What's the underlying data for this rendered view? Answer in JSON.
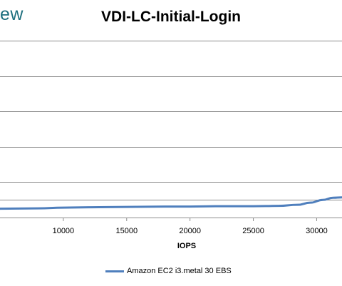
{
  "branding": {
    "text": "ew"
  },
  "chart_data": {
    "type": "line",
    "title": "VDI-LC-Initial-Login",
    "xlabel": "IOPS",
    "ylabel": "",
    "xlim": [
      5000,
      32000
    ],
    "ylim": [
      0,
      0.5
    ],
    "x_ticks": [
      10000,
      15000,
      20000,
      25000,
      30000
    ],
    "y_grid": [
      0.5,
      0.4,
      0.3,
      0.2,
      0.1,
      0.05
    ],
    "grid": true,
    "legend_position": "bottom",
    "series": [
      {
        "name": "Amazon EC2 i3.metal 30 EBS",
        "color": "#4f7fbd",
        "points": [
          {
            "x": 5000,
            "y": 0.025
          },
          {
            "x": 8000,
            "y": 0.026
          },
          {
            "x": 10000,
            "y": 0.028
          },
          {
            "x": 12000,
            "y": 0.029
          },
          {
            "x": 15000,
            "y": 0.03
          },
          {
            "x": 18000,
            "y": 0.031
          },
          {
            "x": 20000,
            "y": 0.031
          },
          {
            "x": 22000,
            "y": 0.032
          },
          {
            "x": 25000,
            "y": 0.032
          },
          {
            "x": 27000,
            "y": 0.033
          },
          {
            "x": 28500,
            "y": 0.036
          },
          {
            "x": 29500,
            "y": 0.042
          },
          {
            "x": 30500,
            "y": 0.05
          },
          {
            "x": 31300,
            "y": 0.056
          },
          {
            "x": 32000,
            "y": 0.057
          }
        ]
      }
    ]
  }
}
